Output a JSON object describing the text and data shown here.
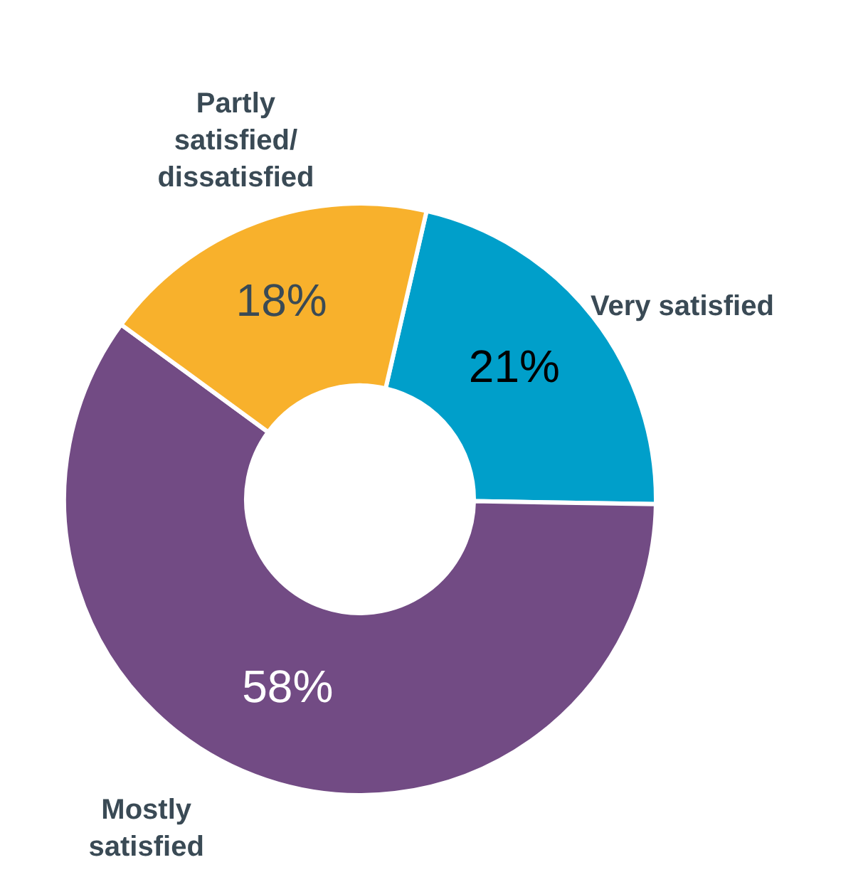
{
  "chart_data": {
    "type": "donut",
    "categories": [
      "Very satisfied",
      "Mostly satisfied",
      "Partly satisfied/ dissatisfied"
    ],
    "values": [
      21,
      58,
      18
    ],
    "value_labels": [
      "21%",
      "58%",
      "18%"
    ],
    "colors": [
      "#009fca",
      "#724b84",
      "#f8b12c"
    ]
  }
}
